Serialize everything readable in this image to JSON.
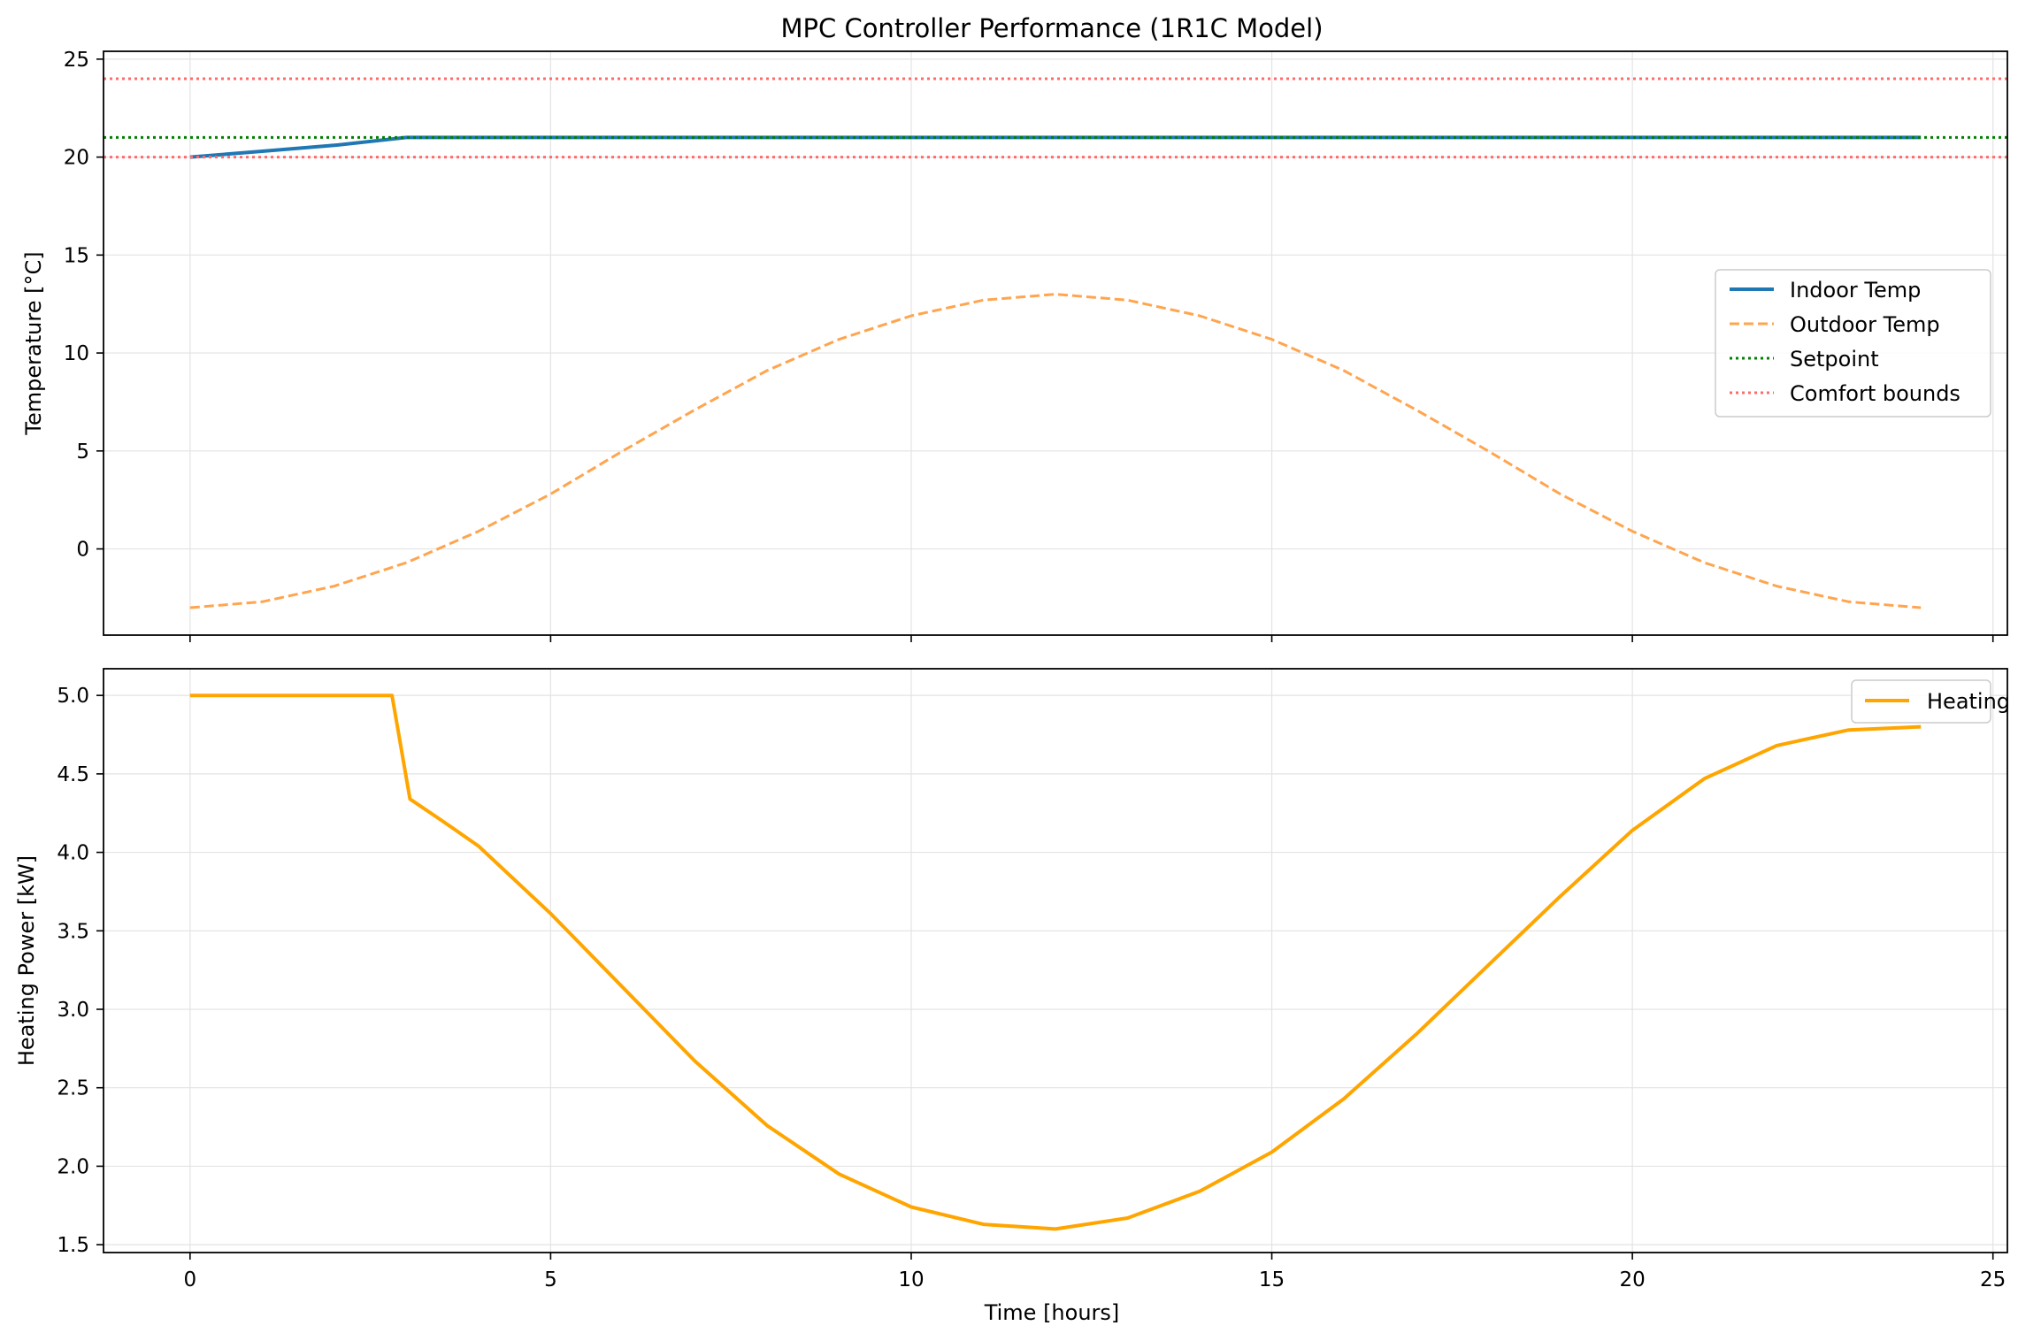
{
  "title": "MPC Controller Performance (1R1C Model)",
  "colors": {
    "indoor": "#1f77b4",
    "outdoor": "#ffa54f",
    "setpoint": "#008000",
    "comfort": "#ff6b6b",
    "heating": "#ffa500",
    "grid": "#e3e3e3",
    "axis": "#000000"
  },
  "chart_data": [
    {
      "type": "line",
      "title": "MPC Controller Performance (1R1C Model)",
      "xlabel": "",
      "ylabel": "Temperature [°C]",
      "xlim": [
        -1.2,
        25.2
      ],
      "ylim": [
        -4.4,
        25.4
      ],
      "xticks": [
        0,
        5,
        10,
        15,
        20,
        25
      ],
      "yticks": [
        0,
        5,
        10,
        15,
        20,
        25
      ],
      "x_tick_labels_shown": false,
      "grid": true,
      "legend_position": "center-right",
      "series": [
        {
          "name": "Indoor Temp",
          "style": "solid",
          "color_key": "indoor",
          "x": [
            0,
            1,
            2,
            3,
            4,
            6,
            8,
            10,
            12,
            14,
            16,
            18,
            20,
            22,
            24
          ],
          "y": [
            20.0,
            20.3,
            20.6,
            21.0,
            21.0,
            21.0,
            21.0,
            21.0,
            21.0,
            21.0,
            21.0,
            21.0,
            21.0,
            21.0,
            21.0
          ]
        },
        {
          "name": "Outdoor Temp",
          "style": "dashed",
          "color_key": "outdoor",
          "x": [
            0,
            1,
            2,
            3,
            4,
            5,
            6,
            7,
            8,
            9,
            10,
            11,
            12,
            13,
            14,
            15,
            16,
            17,
            18,
            19,
            20,
            21,
            22,
            23,
            24
          ],
          "y": [
            -3.0,
            -2.7,
            -1.9,
            -0.7,
            0.9,
            2.8,
            5.0,
            7.1,
            9.1,
            10.7,
            11.9,
            12.7,
            13.0,
            12.7,
            11.9,
            10.7,
            9.1,
            7.1,
            5.0,
            2.8,
            0.9,
            -0.7,
            -1.9,
            -2.7,
            -3.0
          ]
        },
        {
          "name": "Setpoint",
          "style": "dotted",
          "color_key": "setpoint",
          "x": [
            -1.2,
            25.2
          ],
          "y": [
            21,
            21
          ]
        },
        {
          "name": "Comfort bounds",
          "style": "dotted",
          "color_key": "comfort",
          "x": [
            -1.2,
            25.2
          ],
          "y": [
            24,
            24
          ]
        },
        {
          "name": "",
          "style": "dotted",
          "color_key": "comfort",
          "x": [
            -1.2,
            25.2
          ],
          "y": [
            20,
            20
          ]
        }
      ]
    },
    {
      "type": "line",
      "title": "",
      "xlabel": "Time [hours]",
      "ylabel": "Heating Power [kW]",
      "xlim": [
        -1.2,
        25.2
      ],
      "ylim": [
        1.45,
        5.17
      ],
      "xticks": [
        0,
        5,
        10,
        15,
        20,
        25
      ],
      "yticks": [
        1.5,
        2.0,
        2.5,
        3.0,
        3.5,
        4.0,
        4.5,
        5.0
      ],
      "x_tick_labels_shown": true,
      "grid": true,
      "legend_position": "top-right",
      "series": [
        {
          "name": "Heating Power",
          "style": "solid",
          "color_key": "heating",
          "x": [
            0,
            1,
            2,
            2.8,
            3.05,
            3.5,
            4,
            5,
            6,
            7,
            8,
            9,
            10,
            11,
            12,
            13,
            14,
            15,
            16,
            17,
            18,
            19,
            20,
            21,
            22,
            23,
            24
          ],
          "y": [
            5.0,
            5.0,
            5.0,
            5.0,
            4.34,
            4.2,
            4.04,
            3.61,
            3.14,
            2.67,
            2.26,
            1.95,
            1.74,
            1.63,
            1.6,
            1.67,
            1.84,
            2.09,
            2.43,
            2.84,
            3.28,
            3.72,
            4.14,
            4.47,
            4.68,
            4.78,
            4.8
          ]
        }
      ]
    }
  ]
}
